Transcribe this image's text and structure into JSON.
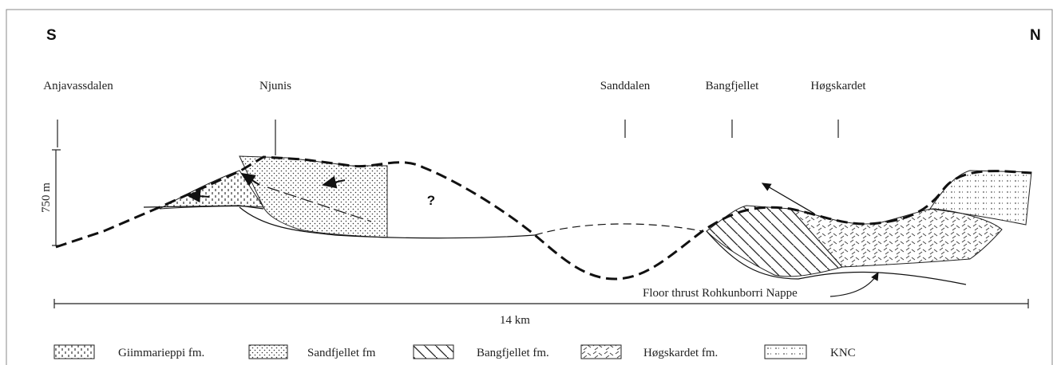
{
  "orientation": {
    "left": "S",
    "right": "N"
  },
  "places": [
    "Anjavassdalen",
    "Njunis",
    "Sanddalen",
    "Bangfjellet",
    "Høgskardet"
  ],
  "scale": {
    "vertical": "750 m",
    "horizontal": "14 km"
  },
  "annotations": {
    "unknown": "?",
    "thrust": "Floor thrust Rohkunborri Nappe"
  },
  "legend": [
    "Giimmarieppi fm.",
    "Sandfjellet fm",
    "Bangfjellet fm.",
    "Høgskardet fm.",
    "KNC"
  ]
}
